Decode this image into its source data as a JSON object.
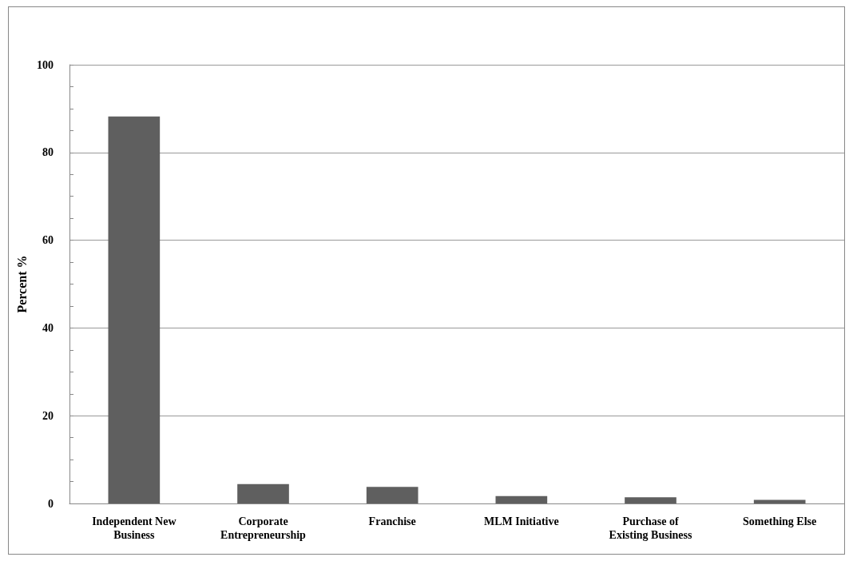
{
  "chart_data": {
    "type": "bar",
    "ylabel": "Percent %",
    "categories": [
      "Independent New Business",
      "Corporate Entrepreneurship",
      "Franchise",
      "MLM Initiative",
      "Purchase of Existing Business",
      "Something Else"
    ],
    "values": [
      88.2,
      4.4,
      3.8,
      1.7,
      1.4,
      0.8
    ],
    "color": "#5f5f5f",
    "ylim": [
      0,
      100
    ],
    "yticks": [
      0,
      {
        "value": 5,
        "label": null
      },
      {
        "value": 10,
        "label": null
      },
      {
        "value": 15,
        "label": null
      },
      20,
      {
        "value": 25,
        "label": null
      },
      {
        "value": 30,
        "label": null
      },
      {
        "value": 35,
        "label": null
      },
      40,
      {
        "value": 45,
        "label": null
      },
      {
        "value": 50,
        "label": null
      },
      {
        "value": 55,
        "label": null
      },
      60,
      {
        "value": 65,
        "label": null
      },
      {
        "value": 70,
        "label": null
      },
      {
        "value": 75,
        "label": null
      },
      80,
      {
        "value": 85,
        "label": null
      },
      {
        "value": 90,
        "label": null
      },
      {
        "value": 95,
        "label": null
      },
      100
    ],
    "grid": true
  }
}
